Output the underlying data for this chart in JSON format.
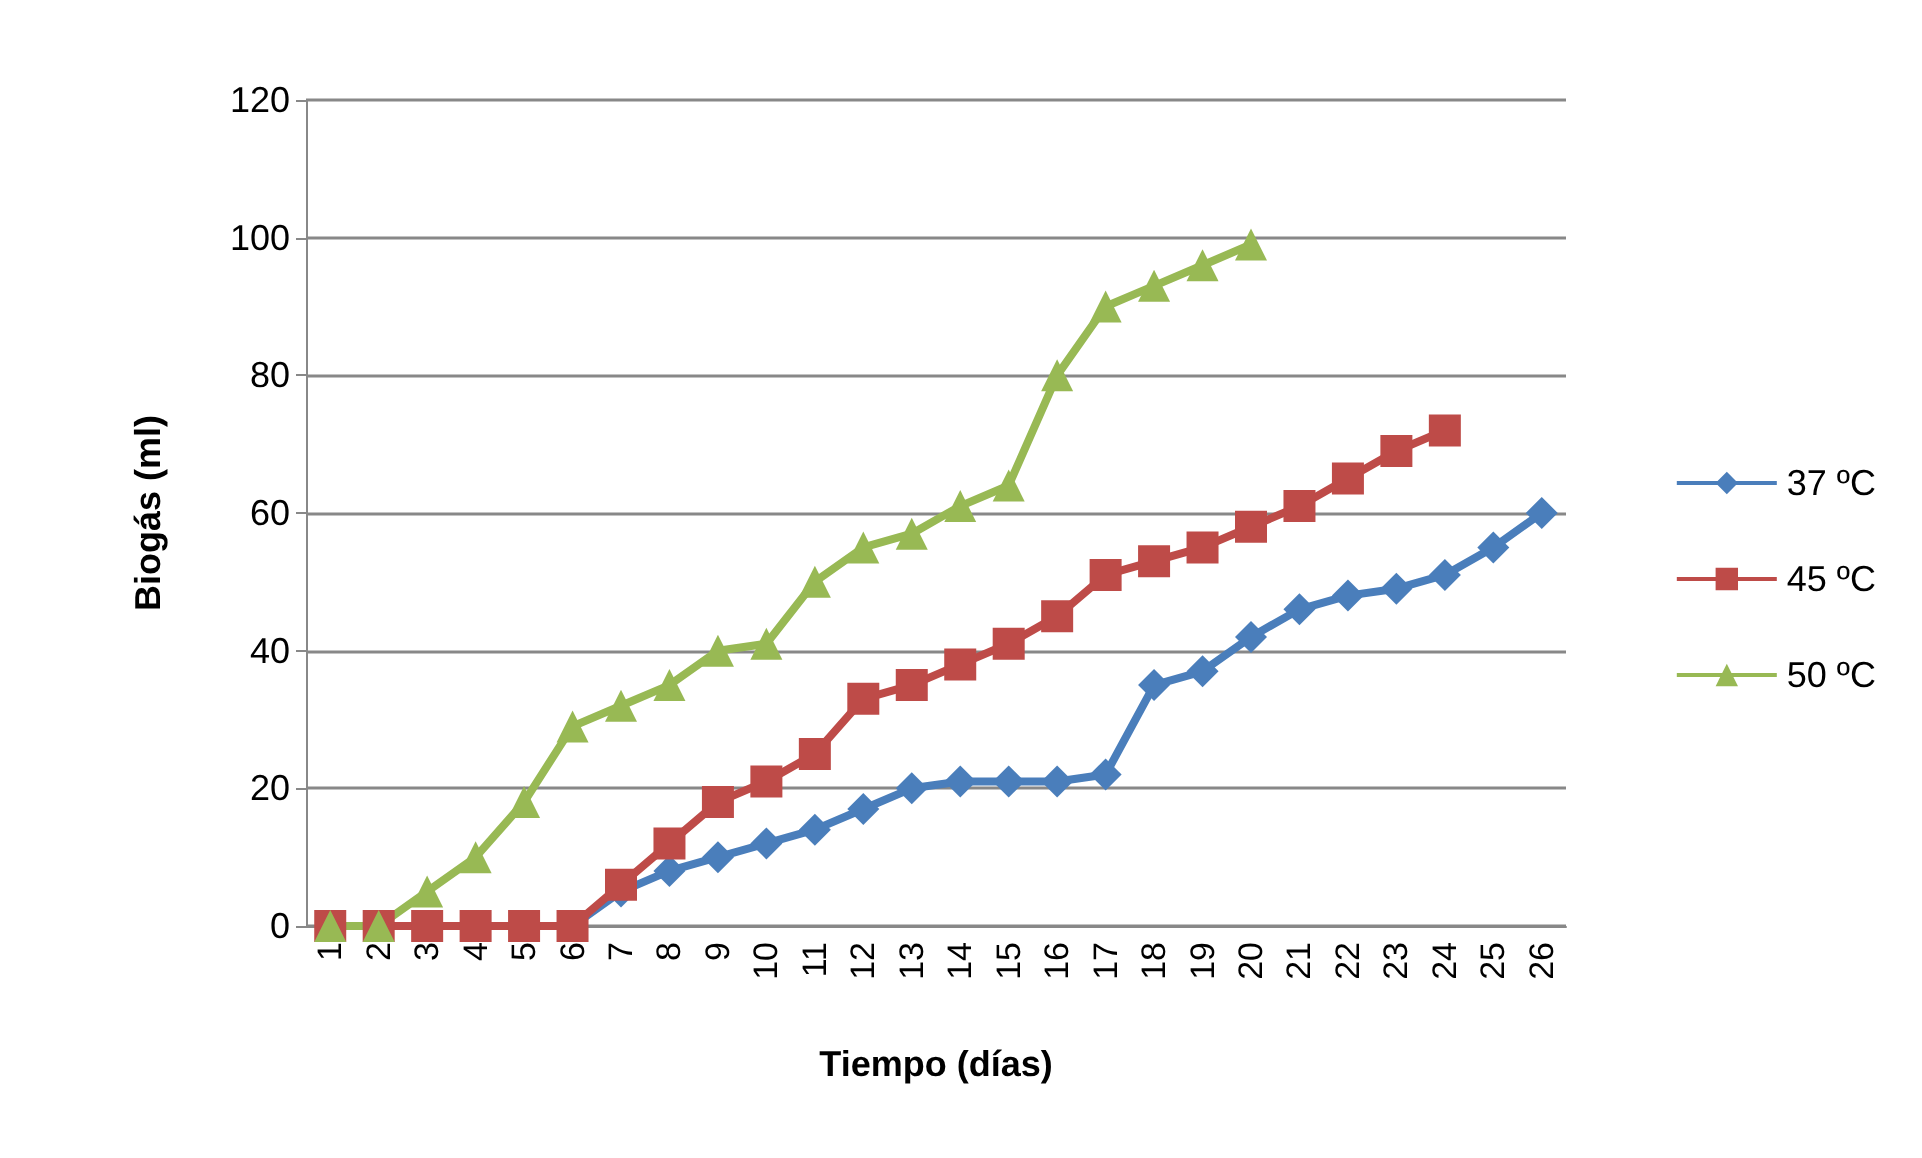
{
  "chart_data": {
    "type": "line",
    "xlabel": "Tiempo (días)",
    "ylabel": "Biogás (ml)",
    "categories": [
      "1",
      "2",
      "3",
      "4",
      "5",
      "6",
      "7",
      "8",
      "9",
      "10",
      "11",
      "12",
      "13",
      "14",
      "15",
      "16",
      "17",
      "18",
      "19",
      "20",
      "21",
      "22",
      "23",
      "24",
      "25",
      "26"
    ],
    "ylim": [
      0,
      120
    ],
    "yticks": [
      0,
      20,
      40,
      60,
      80,
      100,
      120
    ],
    "grid": "y",
    "legend": "right",
    "series": [
      {
        "name": "37 ºC",
        "color": "#4a7ebb",
        "marker": "diamond",
        "values": [
          null,
          null,
          null,
          null,
          null,
          0,
          5,
          8,
          10,
          12,
          14,
          17,
          20,
          21,
          21,
          21,
          22,
          35,
          37,
          42,
          46,
          48,
          49,
          51,
          55,
          60
        ]
      },
      {
        "name": "45 ºC",
        "color": "#be4b48",
        "marker": "square",
        "values": [
          0,
          0,
          0,
          0,
          0,
          0,
          6,
          12,
          18,
          21,
          25,
          33,
          35,
          38,
          41,
          45,
          51,
          53,
          55,
          58,
          61,
          65,
          69,
          72,
          null,
          null
        ]
      },
      {
        "name": "50 ºC",
        "color": "#98b954",
        "marker": "triangle",
        "values": [
          0,
          0,
          5,
          10,
          18,
          29,
          32,
          35,
          40,
          41,
          50,
          55,
          57,
          61,
          64,
          80,
          90,
          93,
          96,
          99,
          null,
          null,
          null,
          null,
          null,
          null
        ]
      }
    ]
  }
}
